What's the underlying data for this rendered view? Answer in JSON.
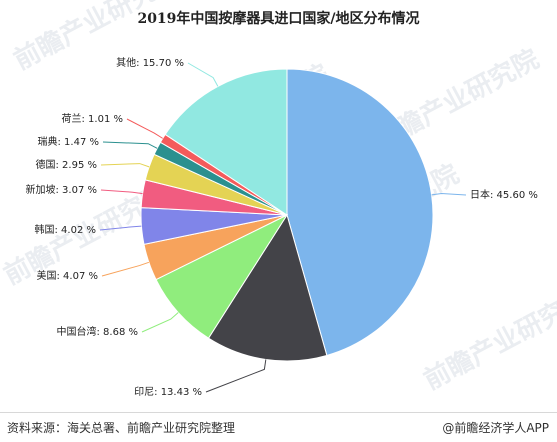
{
  "chart_data": {
    "type": "pie",
    "title": "2019年中国按摩器具进口国家/地区分布情况",
    "unit": "%",
    "slices": [
      {
        "name": "日本",
        "value": 45.6,
        "label": "日本: 45.60 %",
        "color": "#7cb5ec"
      },
      {
        "name": "印尼",
        "value": 13.43,
        "label": "印尼: 13.43 %",
        "color": "#434348"
      },
      {
        "name": "中国台湾",
        "value": 8.68,
        "label": "中国台湾: 8.68 %",
        "color": "#90ed7d"
      },
      {
        "name": "美国",
        "value": 4.07,
        "label": "美国: 4.07 %",
        "color": "#f7a35c"
      },
      {
        "name": "韩国",
        "value": 4.02,
        "label": "韩国: 4.02 %",
        "color": "#8085e9"
      },
      {
        "name": "新加坡",
        "value": 3.07,
        "label": "新加坡: 3.07 %",
        "color": "#f15c80"
      },
      {
        "name": "德国",
        "value": 2.95,
        "label": "德国: 2.95 %",
        "color": "#e4d354"
      },
      {
        "name": "瑞典",
        "value": 1.47,
        "label": "瑞典: 1.47 %",
        "color": "#2b908f"
      },
      {
        "name": "荷兰",
        "value": 1.01,
        "label": "荷兰: 1.01 %",
        "color": "#f45b5b"
      },
      {
        "name": "其他",
        "value": 15.7,
        "label": "其他: 15.70 %",
        "color": "#91e8e1"
      }
    ]
  },
  "footer": {
    "source": "资料来源：海关总署、前瞻产业研究院整理",
    "credit": "@前瞻经济学人APP"
  },
  "watermark": {
    "text": "前瞻产业研究院"
  }
}
